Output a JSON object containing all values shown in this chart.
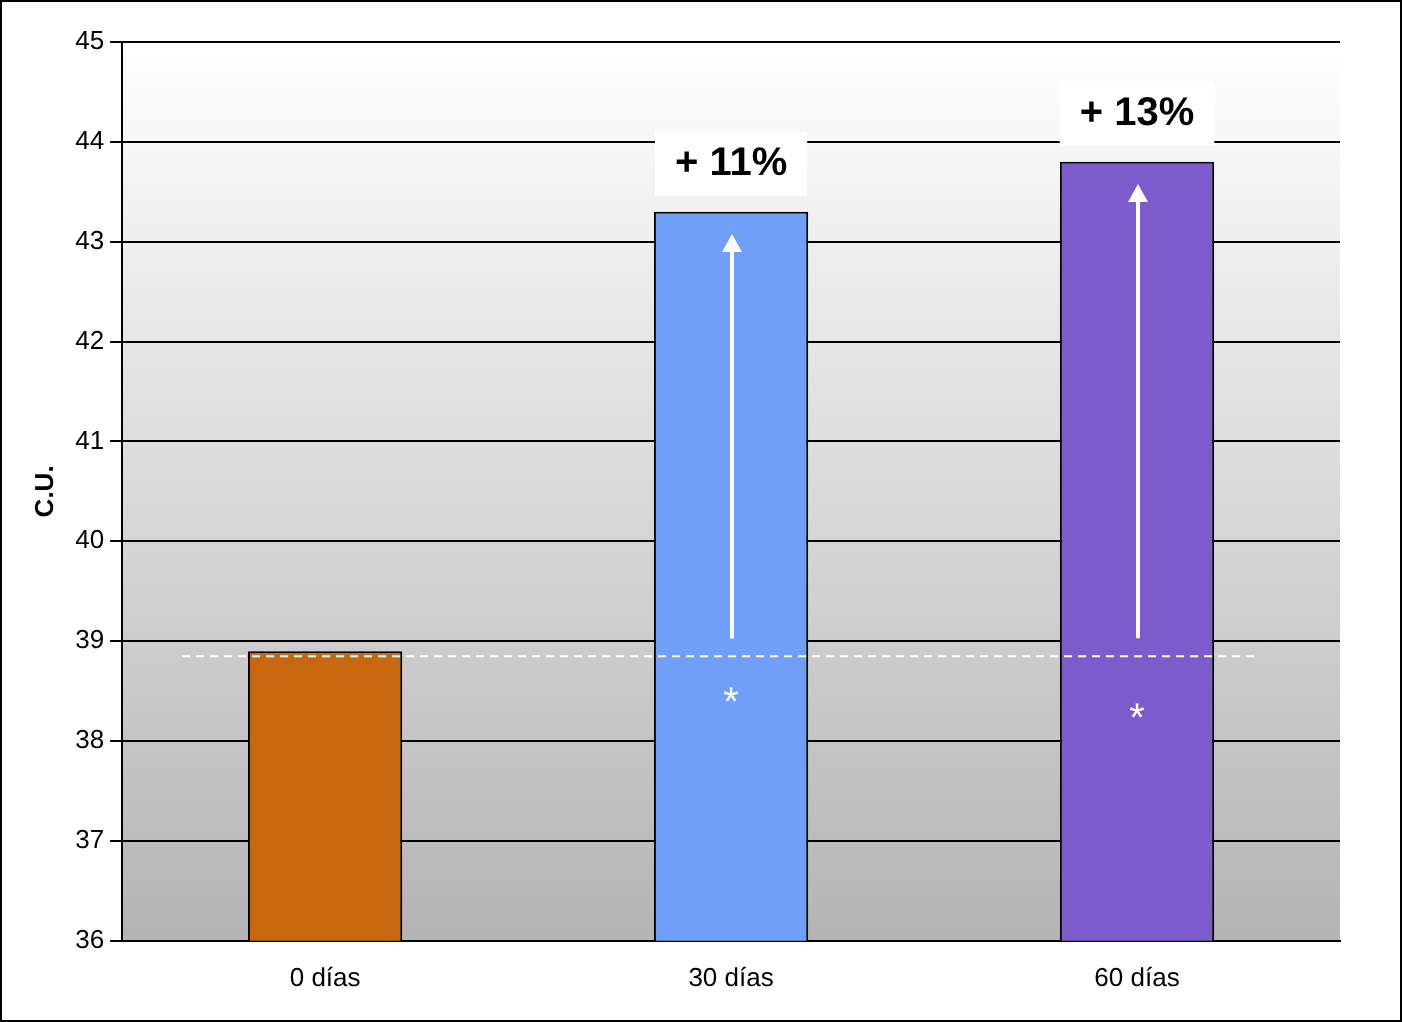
{
  "chart_data": {
    "type": "bar",
    "ylabel": "C.U.",
    "categories": [
      "0 días",
      "30 días",
      "60 días"
    ],
    "values": [
      38.9,
      43.3,
      43.8
    ],
    "colors": [
      "#c8680e",
      "#6f9ff8",
      "#7c5ccc"
    ],
    "ylim": [
      36,
      45
    ],
    "yticks": [
      36,
      37,
      38,
      39,
      40,
      41,
      42,
      43,
      44,
      45
    ],
    "grid": "y",
    "legend": false,
    "ref_lines": [
      {
        "axis": "y",
        "value": 38.85,
        "color": "#ffffff",
        "line_style": "dashed"
      }
    ],
    "annotations": [
      "+ 11%",
      "+ 13%",
      "*",
      "*"
    ]
  }
}
